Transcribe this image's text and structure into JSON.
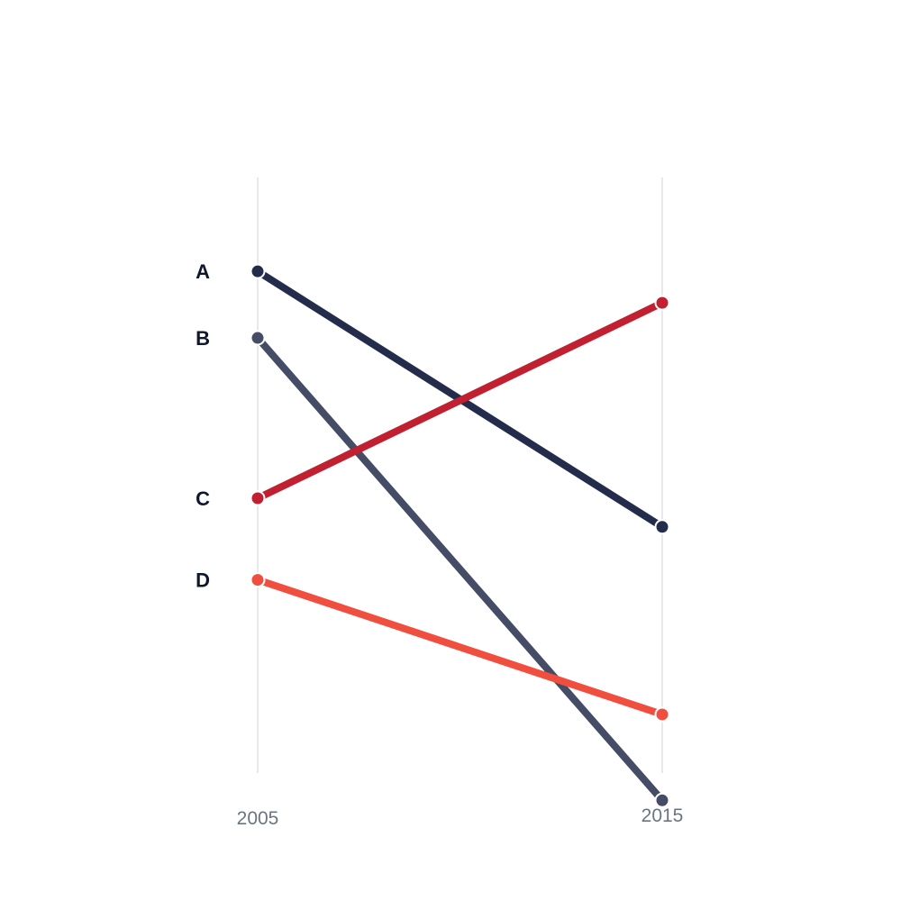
{
  "chart_data": {
    "type": "line",
    "title": "",
    "xlabel": "",
    "ylabel": "",
    "x": [
      "2005",
      "2015"
    ],
    "grid": false,
    "legend": "none",
    "series": [
      {
        "name": "A",
        "values": [
          81.1,
          45.4
        ],
        "color": "#232c4a"
      },
      {
        "name": "B",
        "values": [
          71.8,
          7.2
        ],
        "color": "#454d66"
      },
      {
        "name": "C",
        "values": [
          49.4,
          76.7
        ],
        "color": "#c0202f"
      },
      {
        "name": "D",
        "values": [
          38.0,
          19.2
        ],
        "color": "#f04e3e"
      }
    ],
    "colors": {
      "axis_line": "#d0d3d7",
      "tick_label": "#6b7580",
      "series_label": "#0f172a",
      "marker_stroke": "#ffffff"
    }
  }
}
